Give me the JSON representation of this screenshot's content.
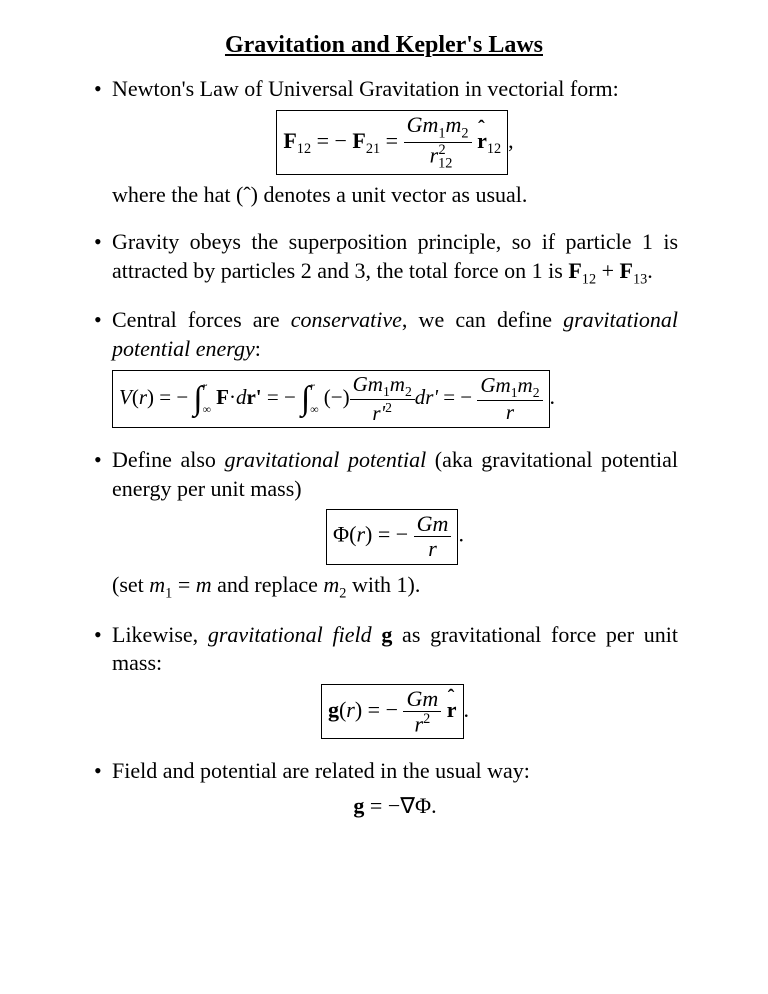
{
  "title": "Gravitation and Kepler's Laws",
  "items": {
    "newton_intro": "Newton's Law of Universal Gravitation in vectorial form:",
    "newton_after": "where the hat (ˆ) denotes a unit vector as usual.",
    "superposition": "Gravity obeys the superposition principle, so if particle 1 is attracted by particles 2 and 3, the total force on 1 is ",
    "central_intro_a": "Central forces are ",
    "central_intro_b": ", we can define ",
    "conservative": "conservative",
    "gpe": "gravitational potential energy",
    "define_intro_a": "Define also ",
    "define_intro_b": " (aka gravitational potential energy per unit mass)",
    "grav_pot": "gravitational potential",
    "set_text": "(set ",
    "replace_text": " and replace ",
    "with_text": " with 1).",
    "likewise_a": "Likewise, ",
    "likewise_b": " as gravitational force per unit mass:",
    "grav_field": "gravitational field",
    "field_g": "g",
    "field_related": "Field and potential are related in the usual way:"
  },
  "math": {
    "F12": "F",
    "F21": "F",
    "Gm1m2": "Gm",
    "m1": "1",
    "m2": "2",
    "r12": "r",
    "sub12": "12",
    "sub21": "21",
    "sub13": "13",
    "r_hat": "r",
    "V": "V",
    "r": "r",
    "rprime": "r'",
    "Fdr": "F",
    "dr": "dr'",
    "Phi": "Φ",
    "Gm": "Gm",
    "eq_m": "m",
    "g": "g",
    "nabla": "∇Φ",
    "int_upper": "r",
    "int_lower": "∞",
    "sq": "2"
  }
}
